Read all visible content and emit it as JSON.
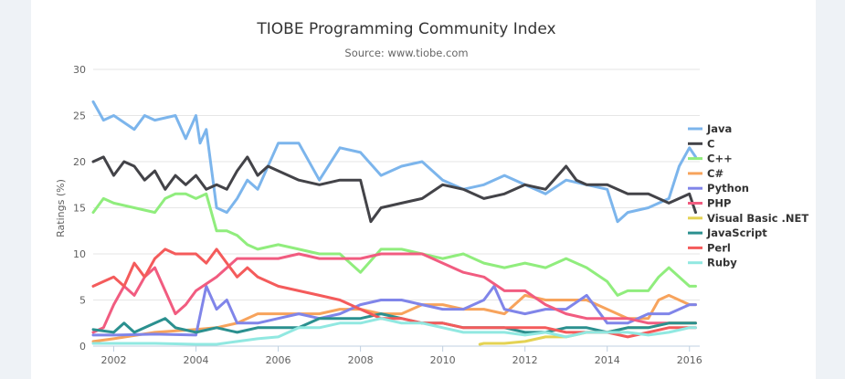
{
  "chart_data": {
    "type": "line",
    "title": "TIOBE Programming Community Index",
    "subtitle": "Source: www.tiobe.com",
    "ylabel": "Ratings (%)",
    "xlabel": "",
    "xlim": [
      2001.5,
      2016.25
    ],
    "ylim": [
      0,
      30
    ],
    "y_ticks": [
      0,
      5,
      10,
      15,
      20,
      25,
      30
    ],
    "x_ticks": [
      2002,
      2004,
      2006,
      2008,
      2010,
      2012,
      2014,
      2016
    ],
    "grid": "horizontal",
    "legend_position": "right",
    "series": [
      {
        "name": "Java",
        "color": "#7cb5ec",
        "x": [
          2001.5,
          2001.75,
          2002,
          2002.5,
          2002.75,
          2003,
          2003.5,
          2003.75,
          2004,
          2004.1,
          2004.25,
          2004.5,
          2004.75,
          2005,
          2005.25,
          2005.5,
          2006,
          2006.5,
          2007,
          2007.5,
          2008,
          2008.5,
          2009,
          2009.5,
          2010,
          2010.5,
          2011,
          2011.5,
          2012,
          2012.5,
          2013,
          2013.5,
          2014,
          2014.25,
          2014.5,
          2015,
          2015.5,
          2015.75,
          2016,
          2016.15
        ],
        "y": [
          26.5,
          24.5,
          25,
          23.5,
          25,
          24.5,
          25,
          22.5,
          25,
          22,
          23.5,
          15,
          14.5,
          16,
          18,
          17,
          22,
          22,
          18,
          21.5,
          21,
          18.5,
          19.5,
          20,
          18,
          17,
          17.5,
          18.5,
          17.5,
          16.5,
          18,
          17.5,
          17,
          13.5,
          14.5,
          15,
          16,
          19.5,
          21.5,
          20.5
        ]
      },
      {
        "name": "C",
        "color": "#434348",
        "x": [
          2001.5,
          2001.75,
          2002,
          2002.25,
          2002.5,
          2002.75,
          2003,
          2003.25,
          2003.5,
          2003.75,
          2004,
          2004.25,
          2004.5,
          2004.75,
          2005,
          2005.25,
          2005.5,
          2005.75,
          2006,
          2006.5,
          2007,
          2007.5,
          2008,
          2008.25,
          2008.5,
          2009,
          2009.5,
          2010,
          2010.5,
          2011,
          2011.5,
          2012,
          2012.5,
          2013,
          2013.25,
          2013.5,
          2014,
          2014.5,
          2015,
          2015.5,
          2016,
          2016.15
        ],
        "y": [
          20,
          20.5,
          18.5,
          20,
          19.5,
          18,
          19,
          17,
          18.5,
          17.5,
          18.5,
          17,
          17.5,
          17,
          19,
          20.5,
          18.5,
          19.5,
          19,
          18,
          17.5,
          18,
          18,
          13.5,
          15,
          15.5,
          16,
          17.5,
          17,
          16,
          16.5,
          17.5,
          17,
          19.5,
          18,
          17.5,
          17.5,
          16.5,
          16.5,
          15.5,
          16.5,
          14.5
        ]
      },
      {
        "name": "C++",
        "color": "#90ed7d",
        "x": [
          2001.5,
          2001.75,
          2002,
          2002.5,
          2003,
          2003.25,
          2003.5,
          2003.75,
          2004,
          2004.25,
          2004.5,
          2004.75,
          2005,
          2005.25,
          2005.5,
          2006,
          2006.5,
          2007,
          2007.5,
          2008,
          2008.5,
          2009,
          2009.5,
          2010,
          2010.5,
          2011,
          2011.5,
          2012,
          2012.5,
          2013,
          2013.5,
          2014,
          2014.25,
          2014.5,
          2015,
          2015.25,
          2015.5,
          2016,
          2016.15
        ],
        "y": [
          14.5,
          16,
          15.5,
          15,
          14.5,
          16,
          16.5,
          16.5,
          16,
          16.5,
          12.5,
          12.5,
          12,
          11,
          10.5,
          11,
          10.5,
          10,
          10,
          8,
          10.5,
          10.5,
          10,
          9.5,
          10,
          9,
          8.5,
          9,
          8.5,
          9.5,
          8.5,
          7,
          5.5,
          6,
          6,
          7.5,
          8.5,
          6.5,
          6.5
        ]
      },
      {
        "name": "C#",
        "color": "#f7a35c",
        "x": [
          2001.5,
          2002,
          2003,
          2004,
          2004.5,
          2005,
          2005.5,
          2006,
          2006.5,
          2007,
          2007.5,
          2008,
          2008.5,
          2009,
          2009.5,
          2010,
          2010.5,
          2011,
          2011.5,
          2012,
          2012.5,
          2013,
          2013.5,
          2014,
          2014.5,
          2015,
          2015.25,
          2015.5,
          2016,
          2016.15
        ],
        "y": [
          0.5,
          0.8,
          1.5,
          1.8,
          2,
          2.5,
          3.5,
          3.5,
          3.5,
          3.5,
          4,
          4,
          3.5,
          3.5,
          4.5,
          4.5,
          4,
          4,
          3.5,
          5.5,
          5,
          5,
          5,
          4,
          3,
          3,
          5,
          5.5,
          4.5,
          4.5
        ]
      },
      {
        "name": "Python",
        "color": "#8085e9",
        "x": [
          2001.5,
          2002,
          2003,
          2004,
          2004.25,
          2004.5,
          2004.75,
          2005,
          2005.5,
          2006,
          2006.5,
          2007,
          2007.5,
          2008,
          2008.5,
          2009,
          2009.5,
          2010,
          2010.5,
          2011,
          2011.25,
          2011.5,
          2012,
          2012.5,
          2013,
          2013.5,
          2014,
          2014.5,
          2015,
          2015.5,
          2016,
          2016.15
        ],
        "y": [
          1.2,
          1.2,
          1.3,
          1.2,
          6.5,
          4,
          5,
          2.5,
          2.5,
          3,
          3.5,
          3,
          3.5,
          4.5,
          5,
          5,
          4.5,
          4,
          4,
          5,
          6.5,
          4,
          3.5,
          4,
          4,
          5.5,
          2.5,
          2.5,
          3.5,
          3.5,
          4.5,
          4.5
        ]
      },
      {
        "name": "PHP",
        "color": "#f15c80",
        "x": [
          2001.5,
          2001.75,
          2002,
          2002.25,
          2002.5,
          2002.75,
          2003,
          2003.25,
          2003.5,
          2003.75,
          2004,
          2004.5,
          2005,
          2005.5,
          2006,
          2006.5,
          2007,
          2007.5,
          2008,
          2008.5,
          2009,
          2009.5,
          2010,
          2010.5,
          2011,
          2011.5,
          2012,
          2012.5,
          2013,
          2013.5,
          2014,
          2014.5,
          2015,
          2015.5,
          2016,
          2016.15
        ],
        "y": [
          1.5,
          2,
          4.5,
          6.5,
          5.5,
          7.5,
          8.5,
          6,
          3.5,
          4.5,
          6,
          7.5,
          9.5,
          9.5,
          9.5,
          10,
          9.5,
          9.5,
          9.5,
          10,
          10,
          10,
          9,
          8,
          7.5,
          6,
          6,
          4.5,
          3.5,
          3,
          3,
          3,
          2.5,
          2.5,
          2.5,
          2.5
        ]
      },
      {
        "name": "Visual Basic .NET",
        "color": "#e4d354",
        "x": [
          2010.9,
          2011,
          2011.5,
          2012,
          2012.5,
          2013,
          2013.5,
          2014,
          2014.5,
          2015,
          2015.5,
          2016,
          2016.15
        ],
        "y": [
          0.2,
          0.3,
          0.3,
          0.5,
          1,
          1,
          1.5,
          1.5,
          2,
          2,
          2.5,
          2.5,
          2.5
        ]
      },
      {
        "name": "JavaScript",
        "color": "#2b908f",
        "x": [
          2001.5,
          2002,
          2002.25,
          2002.5,
          2003,
          2003.25,
          2003.5,
          2004,
          2004.5,
          2005,
          2005.5,
          2006,
          2006.5,
          2007,
          2007.5,
          2008,
          2008.5,
          2009,
          2009.5,
          2010,
          2010.5,
          2011,
          2011.5,
          2012,
          2012.5,
          2013,
          2013.5,
          2014,
          2014.5,
          2015,
          2015.5,
          2016,
          2016.15
        ],
        "y": [
          1.8,
          1.5,
          2.5,
          1.5,
          2.5,
          3,
          2,
          1.5,
          2,
          1.5,
          2,
          2,
          2,
          3,
          3,
          3,
          3.5,
          3,
          2.5,
          2.5,
          2,
          2,
          2,
          1.5,
          1.5,
          2,
          2,
          1.5,
          2,
          2,
          2.5,
          2.5,
          2.5
        ]
      },
      {
        "name": "Perl",
        "color": "#f45b5b",
        "x": [
          2001.5,
          2001.75,
          2002,
          2002.25,
          2002.5,
          2002.75,
          2003,
          2003.25,
          2003.5,
          2004,
          2004.25,
          2004.5,
          2004.75,
          2005,
          2005.25,
          2005.5,
          2006,
          2006.5,
          2007,
          2007.5,
          2008,
          2008.5,
          2009,
          2009.5,
          2010,
          2010.5,
          2011,
          2011.5,
          2012,
          2012.5,
          2013,
          2013.5,
          2014,
          2014.5,
          2015,
          2015.5,
          2016,
          2016.15
        ],
        "y": [
          6.5,
          7,
          7.5,
          6.5,
          9,
          7.5,
          9.5,
          10.5,
          10,
          10,
          9,
          10.5,
          9,
          7.5,
          8.5,
          7.5,
          6.5,
          6,
          5.5,
          5,
          4,
          3,
          3,
          2.5,
          2.5,
          2,
          2,
          2,
          2,
          2,
          1.5,
          1.5,
          1.5,
          1,
          1.5,
          2,
          2,
          2
        ]
      },
      {
        "name": "Ruby",
        "color": "#91e8e1",
        "x": [
          2001.5,
          2002,
          2003,
          2004,
          2004.5,
          2005,
          2005.5,
          2006,
          2006.5,
          2007,
          2007.5,
          2008,
          2008.5,
          2009,
          2009.5,
          2010,
          2010.5,
          2011,
          2011.5,
          2012,
          2012.5,
          2013,
          2013.5,
          2014,
          2014.5,
          2015,
          2015.5,
          2016,
          2016.15
        ],
        "y": [
          0.3,
          0.3,
          0.3,
          0.2,
          0.2,
          0.5,
          0.8,
          1,
          2,
          2,
          2.5,
          2.5,
          3,
          2.5,
          2.5,
          2,
          1.5,
          1.5,
          1.5,
          1.2,
          1.5,
          1,
          1.5,
          1.5,
          1.5,
          1.2,
          1.5,
          2,
          2
        ]
      }
    ]
  }
}
